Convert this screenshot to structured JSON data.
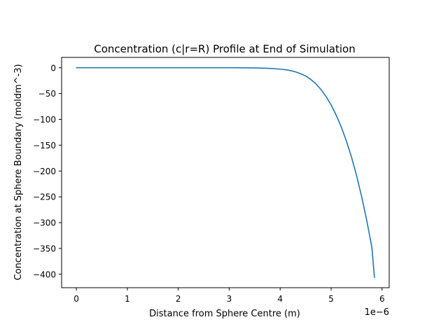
{
  "chart_data": {
    "type": "line",
    "title": "Concentration (c|r=R) Profile at End of Simulation",
    "xlabel": "Distance from Sphere Centre (m)",
    "ylabel": "Concentration at Sphere Boundary (moldm^-3)",
    "x_offset_label": "1e−6",
    "xlim": [
      -0.29,
      6.14
    ],
    "ylim": [
      -426,
      20
    ],
    "xticks": [
      0,
      1,
      2,
      3,
      4,
      5,
      6
    ],
    "xtick_labels": [
      "0",
      "1",
      "2",
      "3",
      "4",
      "5",
      "6"
    ],
    "yticks": [
      0,
      -50,
      -100,
      -150,
      -200,
      -250,
      -300,
      -350,
      -400
    ],
    "ytick_labels": [
      "0",
      "−50",
      "−100",
      "−150",
      "−200",
      "−250",
      "−300",
      "−350",
      "−400"
    ],
    "grid": false,
    "legend": "none",
    "line_color": "#1f77b4",
    "series": [
      {
        "x": [
          0,
          0.5,
          1.0,
          1.5,
          2.0,
          2.5,
          3.0,
          3.4,
          3.6,
          3.8,
          4.0,
          4.1,
          4.2,
          4.3,
          4.4,
          4.5,
          4.6,
          4.7,
          4.8,
          4.9,
          5.0,
          5.1,
          5.2,
          5.3,
          5.4,
          5.5,
          5.6,
          5.7,
          5.8,
          5.85
        ],
        "y": [
          0,
          0,
          0,
          0,
          0,
          0,
          0,
          -0.3,
          -0.6,
          -1.3,
          -2.7,
          -3.8,
          -5.5,
          -8,
          -11.5,
          -16,
          -22.5,
          -31,
          -42,
          -55.5,
          -72,
          -92,
          -115,
          -142,
          -173,
          -209,
          -250,
          -296,
          -348,
          -406
        ]
      }
    ]
  }
}
